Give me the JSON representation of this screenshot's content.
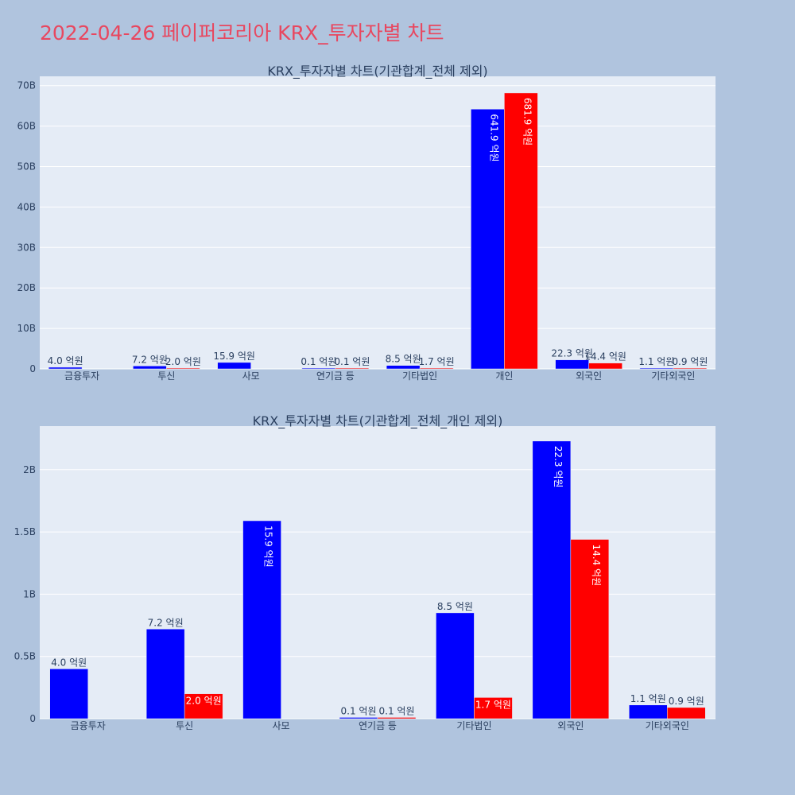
{
  "title": "2022-04-26 페이퍼코리아 KRX_투자자별 차트",
  "colors": {
    "buy": "#0000ff",
    "sell": "#ff0000",
    "plot_bg": "#e5ecf6",
    "grid": "#ffffff",
    "text": "#2a3f5f"
  },
  "chart_data": [
    {
      "type": "bar",
      "title": "KRX_투자자별 차트(기관합계_전체 제외)",
      "categories": [
        "금융투자",
        "투신",
        "사모",
        "연기금 등",
        "기타법인",
        "개인",
        "외국인",
        "기타외국인"
      ],
      "series": [
        {
          "values": [
            0.4,
            0.72,
            1.59,
            0.01,
            0.85,
            64.19,
            2.23,
            0.11
          ],
          "labels": [
            "4.0 억원",
            "7.2 억원",
            "15.9 억원",
            "0.1 억원",
            "8.5 억원",
            "641.9 억원",
            "22.3 억원",
            "1.1 억원"
          ]
        },
        {
          "values": [
            0,
            0.2,
            0,
            0.01,
            0.17,
            68.19,
            1.44,
            0.09
          ],
          "labels": [
            "",
            "2.0 억원",
            "",
            "0.1 억원",
            "1.7 억원",
            "681.9 억원",
            "14.4 억원",
            "0.9 억원"
          ]
        }
      ],
      "yticks": [
        "0",
        "10B",
        "20B",
        "30B",
        "40B",
        "50B",
        "60B",
        "70B"
      ],
      "ytick_values": [
        0,
        10,
        20,
        30,
        40,
        50,
        60,
        70
      ],
      "ylim": [
        0,
        72.3
      ]
    },
    {
      "type": "bar",
      "title": "KRX_투자자별 차트(기관합계_전체_개인 제외)",
      "categories": [
        "금융투자",
        "투신",
        "사모",
        "연기금 등",
        "기타법인",
        "외국인",
        "기타외국인"
      ],
      "series": [
        {
          "values": [
            0.4,
            0.72,
            1.59,
            0.01,
            0.85,
            2.23,
            0.11
          ],
          "labels": [
            "4.0 억원",
            "7.2 억원",
            "15.9 억원",
            "0.1 억원",
            "8.5 억원",
            "22.3 억원",
            "1.1 억원"
          ]
        },
        {
          "values": [
            0,
            0.2,
            0,
            0.01,
            0.17,
            1.44,
            0.09
          ],
          "labels": [
            "",
            "2.0 억원",
            "",
            "0.1 억원",
            "1.7 억원",
            "14.4 억원",
            "0.9 억원"
          ]
        }
      ],
      "yticks": [
        "0",
        "0.5B",
        "1B",
        "1.5B",
        "2B"
      ],
      "ytick_values": [
        0,
        0.5,
        1,
        1.5,
        2
      ],
      "ylim": [
        0,
        2.35
      ]
    }
  ]
}
